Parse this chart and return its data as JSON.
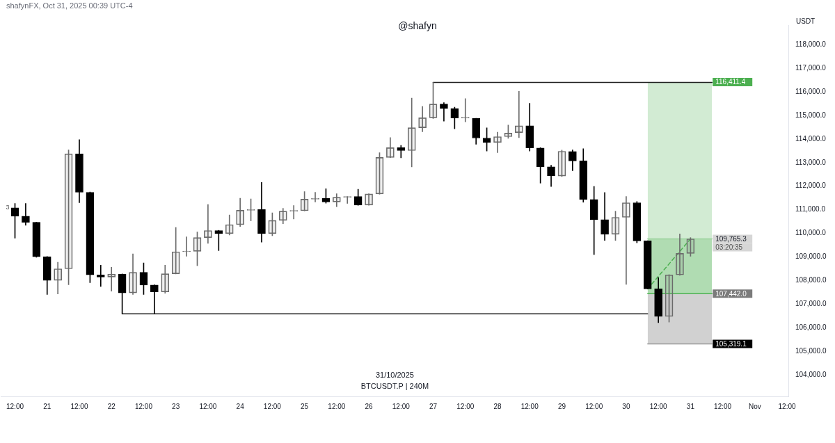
{
  "chart_data": {
    "type": "candlestick",
    "title": "@shafyn",
    "ylabel": "USDT",
    "marker": "none",
    "xlim": [
      "2025-10-20T06:54",
      "2025-11-01T12:30"
    ],
    "xticks": [
      {
        "value": "2025-10-20T12:00",
        "label": "12:00"
      },
      {
        "value": "2025-10-21",
        "label": "21"
      },
      {
        "value": "2025-10-21T12:00",
        "label": "12:00"
      },
      {
        "value": "2025-10-22",
        "label": "22"
      },
      {
        "value": "2025-10-22T12:00",
        "label": "12:00"
      },
      {
        "value": "2025-10-23",
        "label": "23"
      },
      {
        "value": "2025-10-23T12:00",
        "label": "12:00"
      },
      {
        "value": "2025-10-24",
        "label": "24"
      },
      {
        "value": "2025-10-24T12:00",
        "label": "12:00"
      },
      {
        "value": "2025-10-25",
        "label": "25"
      },
      {
        "value": "2025-10-25T12:00",
        "label": "12:00"
      },
      {
        "value": "2025-10-26",
        "label": "26"
      },
      {
        "value": "2025-10-26T12:00",
        "label": "12:00"
      },
      {
        "value": "2025-10-27",
        "label": "27"
      },
      {
        "value": "2025-10-27T12:00",
        "label": "12:00"
      },
      {
        "value": "2025-10-28",
        "label": "28"
      },
      {
        "value": "2025-10-28T12:00",
        "label": "12:00"
      },
      {
        "value": "2025-10-29",
        "label": "29"
      },
      {
        "value": "2025-10-29T12:00",
        "label": "12:00"
      },
      {
        "value": "2025-10-30",
        "label": "30"
      },
      {
        "value": "2025-10-30T12:00",
        "label": "12:00"
      },
      {
        "value": "2025-10-31",
        "label": "31"
      },
      {
        "value": "2025-10-31T12:00",
        "label": "12:00"
      },
      {
        "value": "2025-11-01",
        "label": "Nov"
      },
      {
        "value": "2025-11-01T12:00",
        "label": "12:00"
      }
    ],
    "ylim": [
      103090,
      118830
    ],
    "yticks": [
      {
        "value": 104000,
        "label": "104,000.0"
      },
      {
        "value": 105000,
        "label": "105,000.0"
      },
      {
        "value": 106000,
        "label": "106,000.0"
      },
      {
        "value": 107000,
        "label": "107,000.0"
      },
      {
        "value": 108000,
        "label": "108,000.0"
      },
      {
        "value": 109000,
        "label": "109,000.0"
      },
      {
        "value": 110000,
        "label": "110,000.0"
      },
      {
        "value": 111000,
        "label": "111,000.0"
      },
      {
        "value": 112000,
        "label": "112,000.0"
      },
      {
        "value": 113000,
        "label": "113,000.0"
      },
      {
        "value": 114000,
        "label": "114,000.0"
      },
      {
        "value": 115000,
        "label": "115,000.0"
      },
      {
        "value": 116000,
        "label": "116,000.0"
      },
      {
        "value": 117000,
        "label": "117,000.0"
      },
      {
        "value": 118000,
        "label": "118,000.0"
      }
    ],
    "annotations": [
      "shafynFX, Oct 31, 2025 00:39 UTC-4",
      "31/10/2025",
      "BTCUSDT.P | 240M",
      {
        "text": "3",
        "x": "2025-10-20T12:00",
        "y": 111080
      },
      {
        "text": "116,411.4",
        "x": "2025-10-31T08:00",
        "y": 116411.4
      },
      {
        "text": "109,765.3",
        "x": "2025-10-31T08:00",
        "y": 109765.3
      },
      "03:20:35",
      {
        "text": "107,442.0",
        "x": "2025-10-31T08:00",
        "y": 107442
      },
      {
        "text": "105,319.1",
        "x": "2025-10-31T08:00",
        "y": 105319.1
      }
    ],
    "series": [
      {
        "x": [
          "2025-10-20T12:00",
          "2025-10-20T16:00",
          "2025-10-20T20:00",
          "2025-10-21T00:00",
          "2025-10-21T04:00",
          "2025-10-21T08:00",
          "2025-10-21T12:00",
          "2025-10-21T16:00",
          "2025-10-21T20:00",
          "2025-10-22T00:00",
          "2025-10-22T04:00",
          "2025-10-22T08:00",
          "2025-10-22T12:00",
          "2025-10-22T16:00",
          "2025-10-22T20:00",
          "2025-10-23T00:00",
          "2025-10-23T04:00",
          "2025-10-23T08:00",
          "2025-10-23T12:00",
          "2025-10-23T16:00",
          "2025-10-23T20:00",
          "2025-10-24T00:00",
          "2025-10-24T04:00",
          "2025-10-24T08:00",
          "2025-10-24T12:00",
          "2025-10-24T16:00",
          "2025-10-24T20:00",
          "2025-10-25T00:00",
          "2025-10-25T04:00",
          "2025-10-25T08:00",
          "2025-10-25T12:00",
          "2025-10-25T16:00",
          "2025-10-25T20:00",
          "2025-10-26T00:00",
          "2025-10-26T04:00",
          "2025-10-26T08:00",
          "2025-10-26T12:00",
          "2025-10-26T16:00",
          "2025-10-26T20:00",
          "2025-10-27T00:00",
          "2025-10-27T04:00",
          "2025-10-27T08:00",
          "2025-10-27T12:00",
          "2025-10-27T16:00",
          "2025-10-27T20:00",
          "2025-10-28T00:00",
          "2025-10-28T04:00",
          "2025-10-28T08:00",
          "2025-10-28T12:00",
          "2025-10-28T16:00",
          "2025-10-28T20:00",
          "2025-10-29T00:00",
          "2025-10-29T04:00",
          "2025-10-29T08:00",
          "2025-10-29T12:00",
          "2025-10-29T16:00",
          "2025-10-29T20:00",
          "2025-10-30T00:00",
          "2025-10-30T04:00",
          "2025-10-30T08:00",
          "2025-10-30T12:00",
          "2025-10-30T16:00",
          "2025-10-30T20:00",
          "2025-10-31T00:00"
        ],
        "ohlc": [
          [
            111080,
            111270,
            109800,
            110730
          ],
          [
            110730,
            111270,
            110340,
            110470
          ],
          [
            110470,
            110480,
            108990,
            109010
          ],
          [
            109010,
            109020,
            107410,
            108010
          ],
          [
            108010,
            108780,
            107430,
            108500
          ],
          [
            108500,
            113540,
            107820,
            113370
          ],
          [
            113370,
            113970,
            111300,
            111740
          ],
          [
            111740,
            111750,
            107910,
            108240
          ],
          [
            108240,
            108650,
            107750,
            108150
          ],
          [
            108150,
            108560,
            107550,
            108270
          ],
          [
            108270,
            108280,
            106590,
            107480
          ],
          [
            107480,
            109130,
            107410,
            108350
          ],
          [
            108350,
            108750,
            107410,
            107810
          ],
          [
            107810,
            107820,
            106590,
            107520
          ],
          [
            107520,
            108650,
            107460,
            108290
          ],
          [
            108290,
            110250,
            108280,
            109220
          ],
          [
            109220,
            109850,
            109030,
            109240
          ],
          [
            109240,
            110060,
            108630,
            109820
          ],
          [
            109820,
            111220,
            109580,
            110120
          ],
          [
            110120,
            110130,
            109270,
            109990
          ],
          [
            109990,
            110780,
            109930,
            110370
          ],
          [
            110370,
            111490,
            110290,
            110980
          ],
          [
            110980,
            111460,
            110530,
            111010
          ],
          [
            111010,
            112160,
            109630,
            109990
          ],
          [
            109990,
            110870,
            109900,
            110550
          ],
          [
            110550,
            111060,
            110410,
            110940
          ],
          [
            110940,
            111180,
            110610,
            110960
          ],
          [
            110960,
            111770,
            110950,
            111450
          ],
          [
            111450,
            111740,
            111330,
            111480
          ],
          [
            111480,
            111890,
            111280,
            111330
          ],
          [
            111330,
            111680,
            111130,
            111530
          ],
          [
            111530,
            111560,
            111270,
            111550
          ],
          [
            111560,
            111870,
            111190,
            111200
          ],
          [
            111200,
            111680,
            111190,
            111670
          ],
          [
            111670,
            113420,
            111660,
            113220
          ],
          [
            113220,
            114060,
            113210,
            113630
          ],
          [
            113630,
            113730,
            113200,
            113510
          ],
          [
            113510,
            115730,
            112820,
            114480
          ],
          [
            114480,
            115380,
            114310,
            114900
          ],
          [
            114900,
            116400,
            114870,
            115480
          ],
          [
            115480,
            115540,
            114760,
            115290
          ],
          [
            115290,
            115350,
            114430,
            114890
          ],
          [
            114890,
            115710,
            114730,
            114910
          ],
          [
            114870,
            114880,
            113780,
            114040
          ],
          [
            114040,
            114470,
            113490,
            113850
          ],
          [
            113850,
            114290,
            113420,
            114100
          ],
          [
            114100,
            114590,
            114030,
            114250
          ],
          [
            114270,
            116020,
            114060,
            114560
          ],
          [
            114560,
            115510,
            113490,
            113620
          ],
          [
            113620,
            113630,
            112130,
            112820
          ],
          [
            112820,
            112890,
            111990,
            112440
          ],
          [
            112430,
            113530,
            112410,
            113480
          ],
          [
            113470,
            113540,
            112660,
            113070
          ],
          [
            113070,
            113590,
            111320,
            111440
          ],
          [
            111440,
            111990,
            109100,
            110580
          ],
          [
            110580,
            111730,
            109700,
            109960
          ],
          [
            109960,
            110940,
            109700,
            110680
          ],
          [
            110680,
            111560,
            107840,
            111300
          ],
          [
            111300,
            111350,
            109600,
            109680
          ],
          [
            109680,
            109690,
            107640,
            107650
          ],
          [
            107650,
            108130,
            106220,
            106480
          ],
          [
            106480,
            108250,
            106240,
            108240
          ],
          [
            108240,
            109980,
            108220,
            109150
          ],
          [
            109150,
            109820,
            109030,
            109765.3
          ]
        ],
        "colors": [
          "#000000",
          "#000000",
          "#000000",
          "#000000",
          "#6b6b6b",
          "#6b6b6b",
          "#000000",
          "#000000",
          "#000000",
          "#6b6b6b",
          "#000000",
          "#6b6b6b",
          "#000000",
          "#000000",
          "#6b6b6b",
          "#6b6b6b",
          "#6b6b6b",
          "#6b6b6b",
          "#6b6b6b",
          "#000000",
          "#6b6b6b",
          "#6b6b6b",
          "#6b6b6b",
          "#000000",
          "#6b6b6b",
          "#6b6b6b",
          "#6b6b6b",
          "#6b6b6b",
          "#6b6b6b",
          "#000000",
          "#6b6b6b",
          "#6b6b6b",
          "#000000",
          "#6b6b6b",
          "#6b6b6b",
          "#6b6b6b",
          "#000000",
          "#6b6b6b",
          "#6b6b6b",
          "#6b6b6b",
          "#000000",
          "#000000",
          "#6b6b6b",
          "#000000",
          "#000000",
          "#6b6b6b",
          "#6b6b6b",
          "#6b6b6b",
          "#000000",
          "#000000",
          "#000000",
          "#6b6b6b",
          "#000000",
          "#000000",
          "#000000",
          "#000000",
          "#6b6b6b",
          "#6b6b6b",
          "#000000",
          "#000000",
          "#000000",
          "#6b6b6b",
          "#6b6b6b",
          "#6b6b6b"
        ]
      },
      {
        "type": "line",
        "color": "#9bd39d",
        "x": [
          "2025-10-30T08:00",
          "2025-10-31T08:00"
        ],
        "values": [
          109765.3,
          109765.3
        ],
        "lower": [
          109765.3,
          109765.3
        ],
        "upper": [
          116411.4,
          116411.4
        ]
      },
      {
        "type": "line",
        "color": "#4fb154",
        "x": [
          "2025-10-30T08:00",
          "2025-10-31T08:00"
        ],
        "values": [
          107442,
          107442
        ],
        "lower": [
          107442,
          107442
        ],
        "upper": [
          109765.3,
          109765.3
        ]
      },
      {
        "type": "line",
        "color": "#999999",
        "x": [
          "2025-10-30T08:00",
          "2025-10-31T08:00"
        ],
        "values": [
          105319.1,
          105319.1
        ],
        "lower": [
          105319.1,
          105319.1
        ],
        "upper": [
          107442,
          107442
        ]
      },
      {
        "type": "line",
        "color": "#1e1e1e",
        "x": [
          "2025-10-27T00:00",
          "2025-10-31T08:00"
        ],
        "values": [
          116400,
          116400
        ]
      },
      {
        "type": "line",
        "color": "#1e1e1e",
        "x": [
          "2025-10-22T04:00",
          "2025-10-30T08:00"
        ],
        "values": [
          106590,
          106590
        ]
      },
      {
        "type": "line",
        "color": "#4caf50",
        "line_style": "dashed",
        "x": [
          "2025-10-30T08:00",
          "2025-10-31T00:00"
        ],
        "values": [
          107650,
          109765.3
        ]
      }
    ]
  }
}
